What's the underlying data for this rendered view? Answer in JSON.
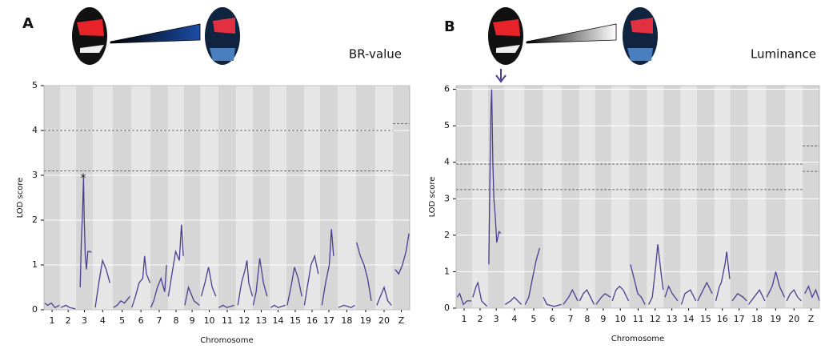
{
  "chart_data": [
    {
      "type": "line",
      "panel_label": "A",
      "trait_label": "BR-value",
      "annotation": "*",
      "xlabel": "Chromosome",
      "ylabel": "LOD score",
      "xlim": [
        0,
        100
      ],
      "ylim": [
        0,
        5
      ],
      "yticks": [
        0,
        1,
        2,
        3,
        4,
        5
      ],
      "grid": true,
      "bands": [
        0,
        4.4,
        8.8,
        13.3,
        18.8,
        23.9,
        29.1,
        33.9,
        38.3,
        42.7,
        47.7,
        52.5,
        57.1,
        61.7,
        66.3,
        71.1,
        75.5,
        80.3,
        85.3,
        90.6,
        95.4,
        100
      ],
      "xticks": [
        {
          "value": 2.2,
          "label": "1"
        },
        {
          "value": 6.6,
          "label": "2"
        },
        {
          "value": 11.05,
          "label": "3"
        },
        {
          "value": 16.05,
          "label": "4"
        },
        {
          "value": 21.35,
          "label": "5"
        },
        {
          "value": 26.5,
          "label": "6"
        },
        {
          "value": 31.5,
          "label": "7"
        },
        {
          "value": 36.1,
          "label": "8"
        },
        {
          "value": 40.5,
          "label": "9"
        },
        {
          "value": 45.2,
          "label": "10"
        },
        {
          "value": 50.1,
          "label": "11"
        },
        {
          "value": 54.8,
          "label": "12"
        },
        {
          "value": 59.4,
          "label": "13"
        },
        {
          "value": 64,
          "label": "14"
        },
        {
          "value": 68.7,
          "label": "15"
        },
        {
          "value": 73.3,
          "label": "16"
        },
        {
          "value": 77.9,
          "label": "17"
        },
        {
          "value": 82.8,
          "label": "18"
        },
        {
          "value": 87.95,
          "label": "19"
        },
        {
          "value": 93,
          "label": "20"
        },
        {
          "value": 97.7,
          "label": "Z"
        }
      ],
      "thresholds": [
        {
          "y": 4.0,
          "x": [
            0,
            95.4
          ]
        },
        {
          "y": 3.1,
          "x": [
            0,
            95.4
          ]
        },
        {
          "y": 4.15,
          "x": [
            95.4,
            100
          ]
        }
      ],
      "series": [
        {
          "color": "#4b3d8f",
          "x": [
            0.2,
            1,
            2,
            3,
            4.2,
            null,
            4.6,
            6,
            7,
            8.6,
            null,
            9.9,
            10.2,
            10.5,
            10.8,
            11.0,
            11.3,
            11.6,
            12.0,
            12.5,
            13.0,
            null,
            14,
            15,
            16,
            17,
            18,
            null,
            19,
            20,
            21,
            22,
            23.5,
            null,
            24,
            25,
            26,
            27,
            27.5,
            28,
            29,
            null,
            29.2,
            30,
            31,
            32,
            33,
            33.5,
            null,
            34,
            35,
            36,
            37,
            37.6,
            38.1,
            null,
            38.5,
            39.5,
            41,
            42.5,
            null,
            43,
            44,
            45,
            46,
            47,
            null,
            47.8,
            49,
            50,
            52,
            null,
            53,
            54,
            55,
            55.5,
            56,
            57,
            null,
            57.2,
            58,
            59,
            60,
            61,
            null,
            62,
            63,
            64,
            66,
            null,
            66.5,
            67.5,
            68.5,
            69.5,
            70.5,
            null,
            71.2,
            72,
            73,
            74,
            75,
            null,
            76,
            77,
            78,
            78.6,
            79.2,
            null,
            80.5,
            82,
            84,
            85,
            null,
            85.5,
            86.5,
            87.5,
            88.5,
            89.5,
            null,
            91,
            92,
            93,
            94,
            95,
            null,
            96,
            97,
            98,
            99,
            99.8
          ],
          "values": [
            0.15,
            0.1,
            0.15,
            0.05,
            0.1,
            null,
            0.05,
            0.1,
            0.05,
            0.02,
            null,
            0.5,
            1.5,
            2.1,
            2.95,
            2.0,
            1.2,
            0.9,
            1.3,
            1.3,
            1.28,
            null,
            0.05,
            0.6,
            1.1,
            0.9,
            0.6,
            null,
            0.05,
            0.1,
            0.2,
            0.15,
            0.3,
            null,
            0.05,
            0.3,
            0.6,
            0.7,
            1.2,
            0.8,
            0.6,
            null,
            0.05,
            0.2,
            0.5,
            0.7,
            0.4,
            1.0,
            null,
            0.3,
            0.8,
            1.3,
            1.1,
            1.9,
            1.2,
            null,
            0.1,
            0.5,
            0.2,
            0.1,
            null,
            0.3,
            0.6,
            0.95,
            0.5,
            0.3,
            null,
            0.05,
            0.1,
            0.05,
            0.1,
            null,
            0.1,
            0.6,
            0.9,
            1.1,
            0.6,
            0.3,
            null,
            0.1,
            0.4,
            1.15,
            0.6,
            0.3,
            null,
            0.05,
            0.1,
            0.05,
            0.1,
            null,
            0.1,
            0.5,
            0.95,
            0.7,
            0.3,
            null,
            0.1,
            0.5,
            1.0,
            1.2,
            0.8,
            null,
            0.1,
            0.6,
            1.0,
            1.8,
            1.2,
            null,
            0.05,
            0.1,
            0.05,
            0.1,
            null,
            1.5,
            1.2,
            1.0,
            0.7,
            0.2,
            null,
            0.1,
            0.3,
            0.5,
            0.2,
            0.1,
            null,
            0.9,
            0.8,
            1.0,
            1.3,
            1.7
          ]
        }
      ]
    },
    {
      "type": "line",
      "panel_label": "B",
      "trait_label": "Luminance",
      "xlabel": "Chromosome",
      "ylabel": "LOD score",
      "xlim": [
        0,
        100
      ],
      "ylim": [
        0,
        6.1
      ],
      "yticks": [
        0,
        1,
        2,
        3,
        4,
        5,
        6
      ],
      "grid": true,
      "bands": [
        0,
        4.4,
        8.8,
        13.3,
        18.8,
        23.9,
        29.1,
        33.9,
        38.3,
        42.7,
        47.7,
        52.5,
        57.1,
        61.7,
        66.3,
        71.1,
        75.5,
        80.3,
        85.3,
        90.6,
        95.4,
        100
      ],
      "xticks": [
        {
          "value": 2.2,
          "label": "1"
        },
        {
          "value": 6.6,
          "label": "2"
        },
        {
          "value": 11.05,
          "label": "3"
        },
        {
          "value": 16.05,
          "label": "4"
        },
        {
          "value": 21.35,
          "label": "5"
        },
        {
          "value": 26.5,
          "label": "6"
        },
        {
          "value": 31.5,
          "label": "7"
        },
        {
          "value": 36.1,
          "label": "8"
        },
        {
          "value": 40.5,
          "label": "9"
        },
        {
          "value": 45.2,
          "label": "10"
        },
        {
          "value": 50.1,
          "label": "11"
        },
        {
          "value": 54.8,
          "label": "12"
        },
        {
          "value": 59.4,
          "label": "13"
        },
        {
          "value": 64,
          "label": "14"
        },
        {
          "value": 68.7,
          "label": "15"
        },
        {
          "value": 73.3,
          "label": "16"
        },
        {
          "value": 77.9,
          "label": "17"
        },
        {
          "value": 82.8,
          "label": "18"
        },
        {
          "value": 87.95,
          "label": "19"
        },
        {
          "value": 93,
          "label": "20"
        },
        {
          "value": 97.7,
          "label": "Z"
        }
      ],
      "thresholds": [
        {
          "y": 3.95,
          "x": [
            0,
            95.4
          ]
        },
        {
          "y": 3.25,
          "x": [
            0,
            95.4
          ]
        },
        {
          "y": 4.45,
          "x": [
            95.4,
            100
          ]
        },
        {
          "y": 3.75,
          "x": [
            95.4,
            100
          ]
        }
      ],
      "series": [
        {
          "color": "#4b3d8f",
          "x": [
            0.3,
            1,
            2,
            3,
            4.2,
            null,
            4.6,
            5.5,
            6,
            7,
            8.5,
            null,
            9,
            9.3,
            9.6,
            9.8,
            10.1,
            10.4,
            10.8,
            11.2,
            11.8,
            12.3,
            null,
            13.5,
            15,
            16,
            18,
            null,
            19,
            20,
            21,
            22,
            23,
            null,
            24,
            25,
            27,
            29,
            null,
            29.5,
            31,
            32,
            33.5,
            null,
            34,
            35,
            36,
            37,
            38,
            null,
            38.5,
            40,
            41,
            42.5,
            null,
            43,
            44,
            45,
            46,
            47.5,
            null,
            48,
            49,
            50,
            51,
            52,
            null,
            53,
            54,
            55,
            55.5,
            56.5,
            57,
            null,
            57.5,
            58.5,
            59.5,
            61,
            null,
            62,
            63,
            64.5,
            66,
            null,
            66.5,
            68,
            69,
            70.5,
            null,
            71.5,
            72.5,
            73,
            74,
            74.5,
            75.3,
            null,
            76,
            77.5,
            79,
            80,
            null,
            80.5,
            82,
            83.5,
            85,
            null,
            85.5,
            87,
            88,
            89,
            90.4,
            null,
            91,
            92,
            93,
            94,
            95,
            null,
            96,
            97,
            98,
            99,
            100
          ],
          "values": [
            0.3,
            0.4,
            0.1,
            0.2,
            0.2,
            null,
            0.3,
            0.6,
            0.7,
            0.2,
            0.05,
            null,
            1.2,
            3.5,
            5.5,
            6.0,
            4.0,
            3.0,
            2.5,
            1.8,
            2.1,
            2.05,
            null,
            0.1,
            0.2,
            0.3,
            0.1,
            null,
            0.1,
            0.3,
            0.8,
            1.3,
            1.65,
            null,
            0.3,
            0.1,
            0.05,
            0.1,
            null,
            0.1,
            0.3,
            0.5,
            0.2,
            null,
            0.2,
            0.4,
            0.5,
            0.3,
            0.1,
            null,
            0.1,
            0.3,
            0.4,
            0.3,
            null,
            0.2,
            0.5,
            0.6,
            0.5,
            0.2,
            null,
            1.2,
            0.8,
            0.4,
            0.3,
            0.1,
            null,
            0.1,
            0.3,
            1.2,
            1.75,
            0.9,
            0.5,
            null,
            0.3,
            0.6,
            0.4,
            0.2,
            null,
            0.1,
            0.4,
            0.5,
            0.2,
            null,
            0.2,
            0.5,
            0.7,
            0.4,
            null,
            0.2,
            0.6,
            0.7,
            1.2,
            1.55,
            0.8,
            null,
            0.2,
            0.4,
            0.3,
            0.2,
            null,
            0.1,
            0.3,
            0.5,
            0.2,
            null,
            0.3,
            0.6,
            1.0,
            0.6,
            0.3,
            null,
            0.2,
            0.4,
            0.5,
            0.3,
            0.2,
            null,
            0.4,
            0.6,
            0.3,
            0.5,
            0.2
          ]
        }
      ]
    }
  ]
}
